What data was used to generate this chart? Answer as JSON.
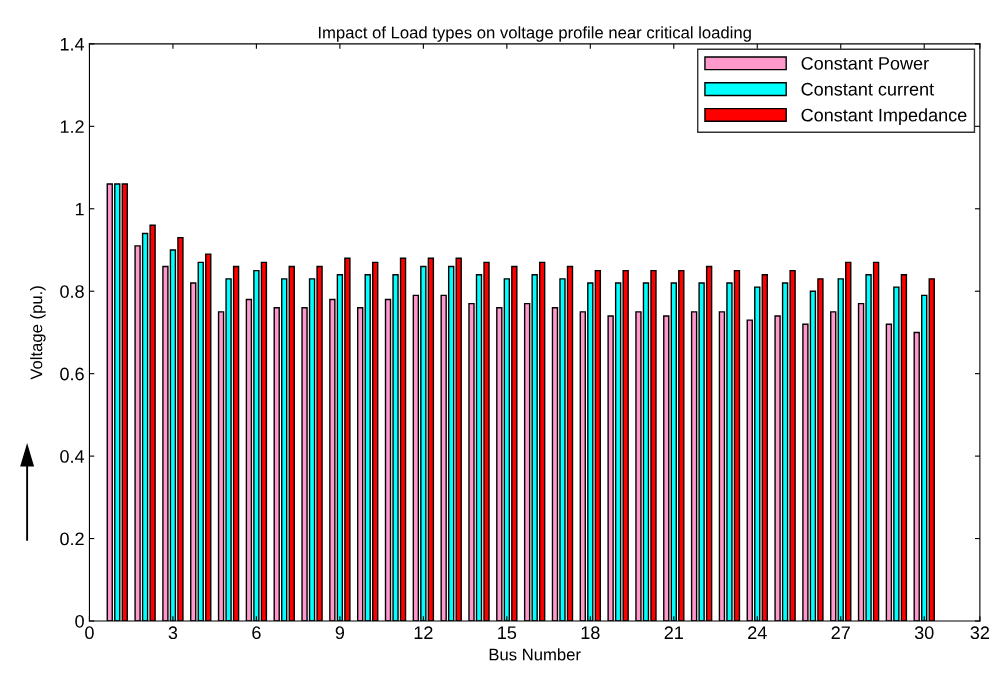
{
  "chart_data": {
    "type": "bar",
    "title": "Impact of Load types on voltage profile near critical loading",
    "xlabel": "Bus Number",
    "ylabel": "Voltage (pu.)",
    "x": [
      1,
      2,
      3,
      4,
      5,
      6,
      7,
      8,
      9,
      10,
      11,
      12,
      13,
      14,
      15,
      16,
      17,
      18,
      19,
      20,
      21,
      22,
      23,
      24,
      25,
      26,
      27,
      28,
      29,
      30
    ],
    "series": [
      {
        "name": "Constant Power",
        "color": "#ff99cc",
        "values": [
          1.06,
          0.91,
          0.86,
          0.82,
          0.75,
          0.78,
          0.76,
          0.76,
          0.78,
          0.76,
          0.78,
          0.79,
          0.79,
          0.77,
          0.76,
          0.77,
          0.76,
          0.75,
          0.74,
          0.75,
          0.74,
          0.75,
          0.75,
          0.73,
          0.74,
          0.72,
          0.75,
          0.77,
          0.72,
          0.7
        ]
      },
      {
        "name": "Constant current",
        "color": "#00ffff",
        "values": [
          1.06,
          0.94,
          0.9,
          0.87,
          0.83,
          0.85,
          0.83,
          0.83,
          0.84,
          0.84,
          0.84,
          0.86,
          0.86,
          0.84,
          0.83,
          0.84,
          0.83,
          0.82,
          0.82,
          0.82,
          0.82,
          0.82,
          0.82,
          0.81,
          0.82,
          0.8,
          0.83,
          0.84,
          0.81,
          0.79
        ]
      },
      {
        "name": "Constant Impedance",
        "color": "#ff0000",
        "values": [
          1.06,
          0.96,
          0.93,
          0.89,
          0.86,
          0.87,
          0.86,
          0.86,
          0.88,
          0.87,
          0.88,
          0.88,
          0.88,
          0.87,
          0.86,
          0.87,
          0.86,
          0.85,
          0.85,
          0.85,
          0.85,
          0.86,
          0.85,
          0.84,
          0.85,
          0.83,
          0.87,
          0.87,
          0.84,
          0.83
        ]
      }
    ],
    "xlim": [
      0,
      32
    ],
    "xticks": [
      0,
      3,
      6,
      9,
      12,
      15,
      18,
      21,
      24,
      27,
      30,
      32
    ],
    "ylim": [
      0,
      1.4
    ],
    "yticks": [
      0,
      0.2,
      0.4,
      0.6,
      0.8,
      1,
      1.2,
      1.4
    ],
    "grid": false,
    "legend": "top right"
  }
}
